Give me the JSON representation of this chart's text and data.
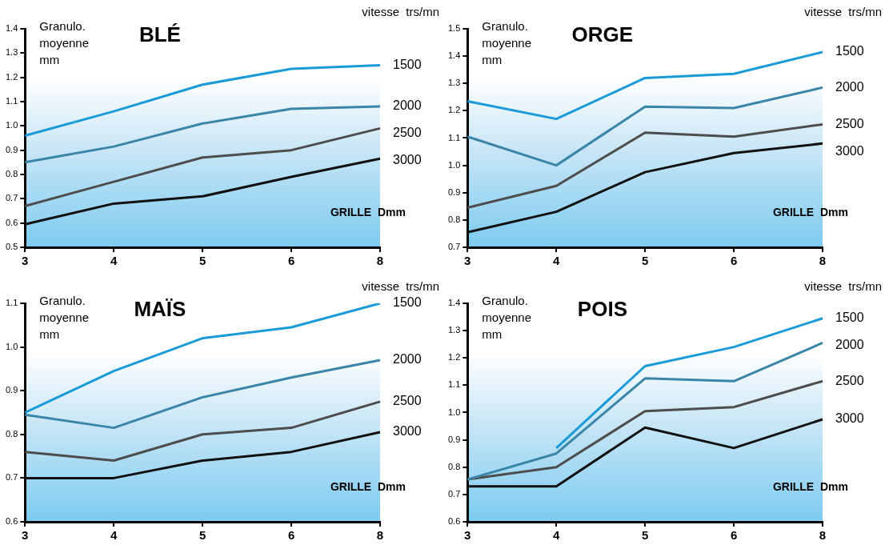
{
  "chart_data": [
    {
      "type": "line",
      "title": "BLÉ",
      "ylabel": "Granulo. moyenne mm",
      "xlabel": "GRILLE  Dmm",
      "legend_title": "vitesse  trs/mn",
      "categories": [
        "3",
        "4",
        "5",
        "6",
        "8"
      ],
      "ylim": [
        0.5,
        1.4
      ],
      "yticks": [
        {
          "value": 0.5,
          "label": "0.5"
        },
        {
          "value": 0.6,
          "label": "0.6"
        },
        {
          "value": 0.7,
          "label": "0.7"
        },
        {
          "value": 0.8,
          "label": "0.8"
        },
        {
          "value": 0.9,
          "label": "0.9"
        },
        {
          "value": 1.0,
          "label": "1.0"
        },
        {
          "value": 1.1,
          "label": "1.1"
        },
        {
          "value": 1.2,
          "label": "1.2"
        },
        {
          "value": 1.3,
          "label": "1.3"
        },
        {
          "value": 1.4,
          "label": "1.4"
        }
      ],
      "marker": "none",
      "series": [
        {
          "name": "1500",
          "color": "#1a9ad6",
          "values": [
            0.96,
            1.06,
            1.17,
            1.235,
            1.25
          ]
        },
        {
          "name": "2000",
          "color": "#3a85a8",
          "values": [
            0.85,
            0.915,
            1.01,
            1.07,
            1.08
          ]
        },
        {
          "name": "2500",
          "color": "#4d4d4d",
          "values": [
            0.67,
            0.77,
            0.87,
            0.9,
            0.99
          ]
        },
        {
          "name": "3000",
          "color": "#111111",
          "values": [
            0.595,
            0.68,
            0.71,
            0.79,
            0.865
          ]
        }
      ]
    },
    {
      "type": "line",
      "title": "ORGE",
      "ylabel": "Granulo. moyenne mm",
      "xlabel": "GRILLE  Dmm",
      "legend_title": "vitesse  trs/mn",
      "categories": [
        "3",
        "4",
        "5",
        "6",
        "8"
      ],
      "ylim": [
        0.7,
        1.5
      ],
      "yticks": [
        {
          "value": 0.7,
          "label": "0.7"
        },
        {
          "value": 0.8,
          "label": "0.8"
        },
        {
          "value": 0.9,
          "label": "0.9"
        },
        {
          "value": 1.0,
          "label": "1.0"
        },
        {
          "value": 1.1,
          "label": "1.1"
        },
        {
          "value": 1.2,
          "label": "1.2"
        },
        {
          "value": 1.3,
          "label": "1.3"
        },
        {
          "value": 1.4,
          "label": "1.4"
        },
        {
          "value": 1.5,
          "label": "1.5"
        }
      ],
      "marker": "none",
      "series": [
        {
          "name": "1500",
          "color": "#1a9ad6",
          "values": [
            1.235,
            1.17,
            1.32,
            1.335,
            1.415
          ]
        },
        {
          "name": "2000",
          "color": "#3a85a8",
          "values": [
            1.105,
            1.0,
            1.215,
            1.21,
            1.285
          ]
        },
        {
          "name": "2500",
          "color": "#4d4d4d",
          "values": [
            0.845,
            0.925,
            1.12,
            1.105,
            1.15
          ]
        },
        {
          "name": "3000",
          "color": "#111111",
          "values": [
            0.755,
            0.83,
            0.975,
            1.045,
            1.08
          ]
        }
      ]
    },
    {
      "type": "line",
      "title": "MAÏS",
      "ylabel": "Granulo. moyenne mm",
      "xlabel": "GRILLE  Dmm",
      "legend_title": "vitesse  trs/mn",
      "categories": [
        "3",
        "4",
        "5",
        "6",
        "8"
      ],
      "ylim": [
        0.6,
        1.1
      ],
      "yticks": [
        {
          "value": 0.6,
          "label": "0.6"
        },
        {
          "value": 0.7,
          "label": "0.7"
        },
        {
          "value": 0.8,
          "label": "0.8"
        },
        {
          "value": 0.9,
          "label": "0.9"
        },
        {
          "value": 1.0,
          "label": "1.0"
        },
        {
          "value": 1.1,
          "label": "1.1"
        }
      ],
      "marker": "none",
      "series": [
        {
          "name": "1500",
          "color": "#1a9ad6",
          "values": [
            0.85,
            0.945,
            1.02,
            1.045,
            1.1
          ]
        },
        {
          "name": "2000",
          "color": "#3a85a8",
          "values": [
            0.845,
            0.815,
            0.885,
            0.93,
            0.97
          ]
        },
        {
          "name": "2500",
          "color": "#4d4d4d",
          "values": [
            0.76,
            0.74,
            0.8,
            0.815,
            0.875
          ]
        },
        {
          "name": "3000",
          "color": "#111111",
          "values": [
            0.7,
            0.7,
            0.74,
            0.76,
            0.805
          ]
        }
      ]
    },
    {
      "type": "line",
      "title": "POIS",
      "ylabel": "Granulo. moyenne mm",
      "xlabel": "GRILLE  Dmm",
      "legend_title": "vitesse  trs/mn",
      "categories": [
        "3",
        "4",
        "5",
        "6",
        "8"
      ],
      "ylim": [
        0.6,
        1.4
      ],
      "yticks": [
        {
          "value": 0.6,
          "label": "0.6"
        },
        {
          "value": 0.7,
          "label": "0.7"
        },
        {
          "value": 0.8,
          "label": "0.8"
        },
        {
          "value": 0.9,
          "label": "0.9"
        },
        {
          "value": 1.0,
          "label": "1.0"
        },
        {
          "value": 1.1,
          "label": "1.1"
        },
        {
          "value": 1.2,
          "label": "1.2"
        },
        {
          "value": 1.3,
          "label": "1.3"
        },
        {
          "value": 1.4,
          "label": "1.4"
        }
      ],
      "marker": "none",
      "series": [
        {
          "name": "1500",
          "color": "#1a9ad6",
          "values": [
            null,
            0.87,
            1.17,
            1.24,
            1.345
          ]
        },
        {
          "name": "2000",
          "color": "#3a85a8",
          "values": [
            0.755,
            0.85,
            1.125,
            1.115,
            1.255
          ]
        },
        {
          "name": "2500",
          "color": "#4d4d4d",
          "values": [
            0.755,
            0.8,
            1.005,
            1.02,
            1.115
          ]
        },
        {
          "name": "3000",
          "color": "#111111",
          "values": [
            0.73,
            0.73,
            0.945,
            0.87,
            0.975
          ]
        }
      ]
    }
  ]
}
